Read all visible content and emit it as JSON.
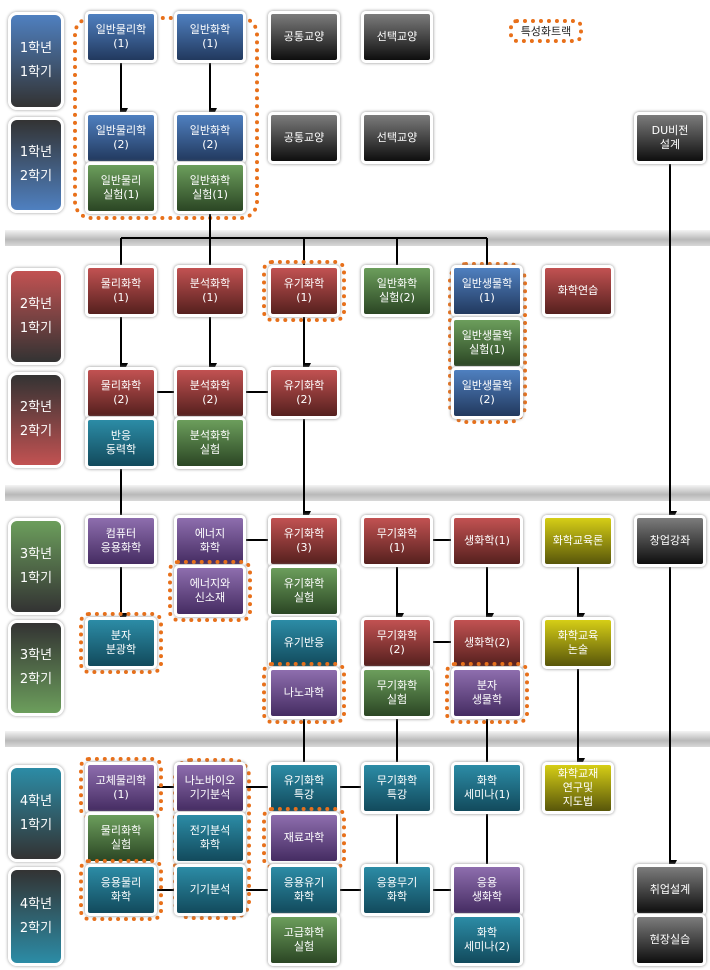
{
  "legend": "특성화트랙",
  "colors": {
    "blue": "#4f80c0",
    "green": "#6c9e5c",
    "gray": "#7c7c7c",
    "red": "#c25252",
    "teal": "#2c8ca6",
    "purple": "#8e6eae",
    "olive": "#d6ce16",
    "track": "#e8701a"
  },
  "semesters": [
    {
      "label": "1학년\n1학기",
      "color": "blue"
    },
    {
      "label": "1학년\n2학기",
      "color": "blue"
    },
    {
      "label": "2학년\n1학기",
      "color": "red"
    },
    {
      "label": "2학년\n2학기",
      "color": "red"
    },
    {
      "label": "3학년\n1학기",
      "color": "green"
    },
    {
      "label": "3학년\n2학기",
      "color": "green"
    },
    {
      "label": "4학년\n1학기",
      "color": "teal"
    },
    {
      "label": "4학년\n2학기",
      "color": "teal"
    }
  ],
  "courses": [
    {
      "name": "일반물리학\n(1)",
      "color": "blue"
    },
    {
      "name": "일반화학\n(1)",
      "color": "blue"
    },
    {
      "name": "공통교양",
      "color": "gray"
    },
    {
      "name": "선택교양",
      "color": "gray"
    },
    {
      "name": "일반물리학\n(2)",
      "color": "blue"
    },
    {
      "name": "일반화학\n(2)",
      "color": "blue"
    },
    {
      "name": "일반물리\n실험(1)",
      "color": "green"
    },
    {
      "name": "일반화학\n실험(1)",
      "color": "green"
    },
    {
      "name": "공통교양",
      "color": "gray"
    },
    {
      "name": "선택교양",
      "color": "gray"
    },
    {
      "name": "DU비전\n설계",
      "color": "gray"
    },
    {
      "name": "물리화학\n(1)",
      "color": "red"
    },
    {
      "name": "분석화학\n(1)",
      "color": "red"
    },
    {
      "name": "유기화학\n(1)",
      "color": "red",
      "track": true
    },
    {
      "name": "일반화학\n실험(2)",
      "color": "green"
    },
    {
      "name": "일반생물학\n(1)",
      "color": "blue"
    },
    {
      "name": "화학연습",
      "color": "red"
    },
    {
      "name": "일반생물학\n실험(1)",
      "color": "green"
    },
    {
      "name": "일반생물학\n(2)",
      "color": "blue"
    },
    {
      "name": "물리화학\n(2)",
      "color": "red"
    },
    {
      "name": "분석화학\n(2)",
      "color": "red"
    },
    {
      "name": "유기화학\n(2)",
      "color": "red"
    },
    {
      "name": "반응\n동력학",
      "color": "teal"
    },
    {
      "name": "분석화학\n실험",
      "color": "green"
    },
    {
      "name": "컴퓨터\n응용화학",
      "color": "purple"
    },
    {
      "name": "에너지\n화학",
      "color": "purple"
    },
    {
      "name": "유기화학\n(3)",
      "color": "red"
    },
    {
      "name": "무기화학\n(1)",
      "color": "red"
    },
    {
      "name": "생화학(1)",
      "color": "red"
    },
    {
      "name": "화학교육론",
      "color": "olive"
    },
    {
      "name": "창업강좌",
      "color": "gray"
    },
    {
      "name": "에너지와\n신소재",
      "color": "purple",
      "track": true
    },
    {
      "name": "유기화학\n실험",
      "color": "green"
    },
    {
      "name": "분자\n분광학",
      "color": "teal",
      "track": true
    },
    {
      "name": "유기반응",
      "color": "teal"
    },
    {
      "name": "무기화학\n(2)",
      "color": "red"
    },
    {
      "name": "생화학(2)",
      "color": "red"
    },
    {
      "name": "화학교육\n논술",
      "color": "olive"
    },
    {
      "name": "나노과학",
      "color": "purple",
      "track": true
    },
    {
      "name": "무기화학\n실험",
      "color": "green"
    },
    {
      "name": "분자\n생물학",
      "color": "purple",
      "track": true
    },
    {
      "name": "고체물리학\n(1)",
      "color": "purple",
      "track": true
    },
    {
      "name": "나노바이오\n기기분석",
      "color": "purple"
    },
    {
      "name": "유기화학\n특강",
      "color": "teal"
    },
    {
      "name": "무기화학\n특강",
      "color": "teal"
    },
    {
      "name": "화학\n세미나(1)",
      "color": "teal"
    },
    {
      "name": "화학교재\n연구및\n지도법",
      "color": "olive"
    },
    {
      "name": "물리화학\n실험",
      "color": "green"
    },
    {
      "name": "전기분석\n화학",
      "color": "teal"
    },
    {
      "name": "재료과학",
      "color": "purple",
      "track": true
    },
    {
      "name": "응용물리\n화학",
      "color": "teal",
      "track": true
    },
    {
      "name": "기기분석",
      "color": "teal"
    },
    {
      "name": "응용유기\n화학",
      "color": "teal"
    },
    {
      "name": "응용무기\n화학",
      "color": "teal"
    },
    {
      "name": "응용\n생화학",
      "color": "purple"
    },
    {
      "name": "취업설계",
      "color": "gray"
    },
    {
      "name": "고급화학\n실험",
      "color": "green"
    },
    {
      "name": "화학\n세미나(2)",
      "color": "teal"
    },
    {
      "name": "현장실습",
      "color": "gray"
    }
  ]
}
